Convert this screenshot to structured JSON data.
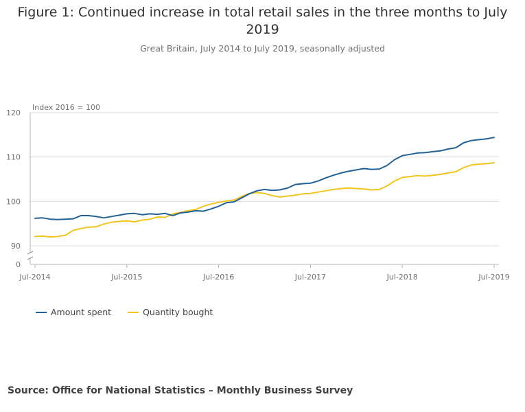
{
  "title": "Figure 1: Continued increase in total retail sales in the three months to July 2019",
  "subtitle": "Great Britain, July 2014 to July 2019, seasonally adjusted",
  "source": "Source: Office for National Statistics – Monthly Business Survey",
  "colors": {
    "amount": "#206095",
    "quantity": "#F0C51E"
  },
  "chart_data": {
    "type": "line",
    "unit_label": "Index 2016 = 100",
    "y_ticks": [
      "120",
      "110",
      "100",
      "90",
      "0"
    ],
    "x_ticks": [
      "Jul-2014",
      "Jul-2015",
      "Jul-2016",
      "Jul-2017",
      "Jul-2018",
      "Jul-2019"
    ],
    "ylim": [
      90,
      120
    ],
    "y_axis_break": true,
    "grid": true,
    "legend_placement": "bottom-left",
    "x": [
      "Jul-2014",
      "Aug-2014",
      "Sep-2014",
      "Oct-2014",
      "Nov-2014",
      "Dec-2014",
      "Jan-2015",
      "Feb-2015",
      "Mar-2015",
      "Apr-2015",
      "May-2015",
      "Jun-2015",
      "Jul-2015",
      "Aug-2015",
      "Sep-2015",
      "Oct-2015",
      "Nov-2015",
      "Dec-2015",
      "Jan-2016",
      "Feb-2016",
      "Mar-2016",
      "Apr-2016",
      "May-2016",
      "Jun-2016",
      "Jul-2016",
      "Aug-2016",
      "Sep-2016",
      "Oct-2016",
      "Nov-2016",
      "Dec-2016",
      "Jan-2017",
      "Feb-2017",
      "Mar-2017",
      "Apr-2017",
      "May-2017",
      "Jun-2017",
      "Jul-2017",
      "Aug-2017",
      "Sep-2017",
      "Oct-2017",
      "Nov-2017",
      "Dec-2017",
      "Jan-2018",
      "Feb-2018",
      "Mar-2018",
      "Apr-2018",
      "May-2018",
      "Jun-2018",
      "Jul-2018",
      "Aug-2018",
      "Sep-2018",
      "Oct-2018",
      "Nov-2018",
      "Dec-2018",
      "Jan-2019",
      "Feb-2019",
      "Mar-2019",
      "Apr-2019",
      "May-2019",
      "Jun-2019",
      "Jul-2019"
    ],
    "series": [
      {
        "name": "Amount spent",
        "color": "#206095",
        "values": [
          96.2,
          96.3,
          96.0,
          95.9,
          96.0,
          96.1,
          96.8,
          96.8,
          96.6,
          96.3,
          96.6,
          96.9,
          97.2,
          97.3,
          97.0,
          97.2,
          97.1,
          97.3,
          96.8,
          97.4,
          97.6,
          97.9,
          97.8,
          98.3,
          98.9,
          99.7,
          99.9,
          100.8,
          101.7,
          102.4,
          102.7,
          102.5,
          102.6,
          103.0,
          103.8,
          104.0,
          104.1,
          104.6,
          105.3,
          105.9,
          106.4,
          106.8,
          107.1,
          107.4,
          107.2,
          107.3,
          108.1,
          109.4,
          110.3,
          110.6,
          110.9,
          111.0,
          111.2,
          111.4,
          111.8,
          112.1,
          113.2,
          113.7,
          113.9,
          114.1,
          114.4
        ]
      },
      {
        "name": "Quantity bought",
        "color": "#F0C51E",
        "values": [
          92.1,
          92.2,
          92.0,
          92.1,
          92.4,
          93.5,
          93.9,
          94.2,
          94.3,
          94.9,
          95.3,
          95.5,
          95.6,
          95.4,
          95.8,
          96.0,
          96.5,
          96.4,
          97.2,
          97.5,
          97.9,
          98.2,
          98.9,
          99.4,
          99.8,
          100.1,
          100.3,
          101.1,
          101.8,
          102.0,
          101.8,
          101.3,
          101.0,
          101.2,
          101.4,
          101.7,
          101.8,
          102.1,
          102.4,
          102.7,
          102.9,
          103.0,
          102.9,
          102.8,
          102.6,
          102.7,
          103.5,
          104.6,
          105.4,
          105.6,
          105.8,
          105.7,
          105.9,
          106.1,
          106.4,
          106.7,
          107.6,
          108.2,
          108.4,
          108.5,
          108.7
        ]
      }
    ]
  }
}
